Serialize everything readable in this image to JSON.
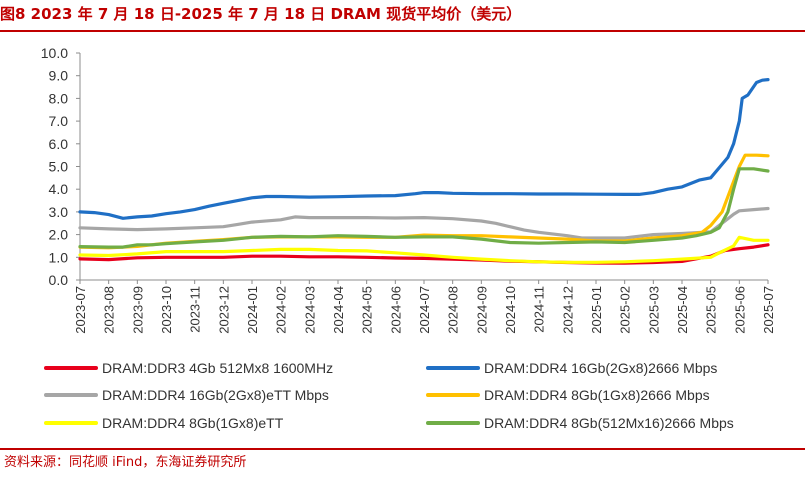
{
  "title": "图8  2023 年 7 月 18 日-2025 年 7 月 18 日 DRAM 现货平均价（美元）",
  "source": "资料来源：同花顺 iFind，东海证券研究所",
  "chart_data": {
    "type": "line",
    "x_categories": [
      "2023-07",
      "2023-08",
      "2023-09",
      "2023-10",
      "2023-11",
      "2023-12",
      "2024-01",
      "2024-02",
      "2024-03",
      "2024-04",
      "2024-05",
      "2024-06",
      "2024-07",
      "2024-08",
      "2024-09",
      "2024-10",
      "2024-11",
      "2024-12",
      "2025-01",
      "2025-02",
      "2025-03",
      "2025-04",
      "2025-05",
      "2025-06",
      "2025-07"
    ],
    "y_ticks": [
      "0.0",
      "1.0",
      "2.0",
      "3.0",
      "4.0",
      "5.0",
      "6.0",
      "7.0",
      "8.0",
      "9.0",
      "10.0"
    ],
    "ylim": [
      0,
      10
    ],
    "grid": false,
    "legend_position": "bottom",
    "series": [
      {
        "name": "DRAM:DDR3 4Gb 512Mx8 1600MHz",
        "color": "#e8001c",
        "points": [
          [
            0,
            0.93
          ],
          [
            1,
            0.9
          ],
          [
            2,
            0.98
          ],
          [
            3,
            1.0
          ],
          [
            4,
            1.0
          ],
          [
            5,
            1.0
          ],
          [
            6,
            1.05
          ],
          [
            7,
            1.05
          ],
          [
            8,
            1.02
          ],
          [
            9,
            1.02
          ],
          [
            10,
            1.0
          ],
          [
            11,
            0.97
          ],
          [
            12,
            0.95
          ],
          [
            13,
            0.92
          ],
          [
            14,
            0.88
          ],
          [
            15,
            0.83
          ],
          [
            16,
            0.8
          ],
          [
            17,
            0.77
          ],
          [
            18,
            0.75
          ],
          [
            19,
            0.74
          ],
          [
            20,
            0.77
          ],
          [
            21,
            0.82
          ],
          [
            22,
            1.05
          ],
          [
            22.5,
            1.3
          ],
          [
            23,
            1.38
          ],
          [
            23.5,
            1.45
          ],
          [
            24,
            1.55
          ]
        ]
      },
      {
        "name": "DRAM:DDR4 16Gb(2Gx8)2666 Mbps",
        "color": "#1f6fc5",
        "points": [
          [
            0,
            3.0
          ],
          [
            0.5,
            2.97
          ],
          [
            1,
            2.88
          ],
          [
            1.5,
            2.72
          ],
          [
            2,
            2.78
          ],
          [
            2.5,
            2.82
          ],
          [
            3,
            2.92
          ],
          [
            3.5,
            3.0
          ],
          [
            4,
            3.1
          ],
          [
            4.5,
            3.25
          ],
          [
            5,
            3.38
          ],
          [
            5.5,
            3.5
          ],
          [
            6,
            3.62
          ],
          [
            6.5,
            3.68
          ],
          [
            7,
            3.68
          ],
          [
            8,
            3.65
          ],
          [
            9,
            3.67
          ],
          [
            10,
            3.7
          ],
          [
            11,
            3.72
          ],
          [
            11.7,
            3.8
          ],
          [
            12,
            3.85
          ],
          [
            12.5,
            3.85
          ],
          [
            13,
            3.82
          ],
          [
            14,
            3.8
          ],
          [
            15,
            3.8
          ],
          [
            16,
            3.79
          ],
          [
            17,
            3.79
          ],
          [
            18,
            3.78
          ],
          [
            19,
            3.77
          ],
          [
            19.5,
            3.77
          ],
          [
            20,
            3.85
          ],
          [
            20.5,
            4.0
          ],
          [
            21,
            4.1
          ],
          [
            21.3,
            4.25
          ],
          [
            21.6,
            4.4
          ],
          [
            22,
            4.5
          ],
          [
            22.3,
            4.95
          ],
          [
            22.6,
            5.4
          ],
          [
            22.8,
            6.0
          ],
          [
            23,
            7.0
          ],
          [
            23.1,
            8.0
          ],
          [
            23.3,
            8.15
          ],
          [
            23.6,
            8.7
          ],
          [
            23.8,
            8.8
          ],
          [
            24,
            8.83
          ]
        ]
      },
      {
        "name": "DRAM:DDR4 16Gb(2Gx8)eTT Mbps",
        "color": "#a6a6a6",
        "points": [
          [
            0,
            2.3
          ],
          [
            1,
            2.25
          ],
          [
            2,
            2.22
          ],
          [
            3,
            2.25
          ],
          [
            4,
            2.3
          ],
          [
            5,
            2.35
          ],
          [
            5.5,
            2.45
          ],
          [
            6,
            2.55
          ],
          [
            7,
            2.65
          ],
          [
            7.5,
            2.78
          ],
          [
            8,
            2.75
          ],
          [
            9,
            2.75
          ],
          [
            10,
            2.75
          ],
          [
            11,
            2.73
          ],
          [
            12,
            2.75
          ],
          [
            13,
            2.7
          ],
          [
            14,
            2.6
          ],
          [
            14.5,
            2.5
          ],
          [
            15,
            2.35
          ],
          [
            15.5,
            2.2
          ],
          [
            16,
            2.1
          ],
          [
            17,
            1.95
          ],
          [
            17.5,
            1.85
          ],
          [
            18,
            1.85
          ],
          [
            19,
            1.85
          ],
          [
            20,
            2.0
          ],
          [
            21,
            2.05
          ],
          [
            22,
            2.12
          ],
          [
            22.5,
            2.6
          ],
          [
            22.8,
            2.9
          ],
          [
            23,
            3.05
          ],
          [
            23.5,
            3.1
          ],
          [
            24,
            3.15
          ]
        ]
      },
      {
        "name": "DRAM:DDR4 8Gb(1Gx8)2666 Mbps",
        "color": "#ffc000",
        "points": [
          [
            0,
            1.45
          ],
          [
            1,
            1.42
          ],
          [
            2,
            1.48
          ],
          [
            3,
            1.62
          ],
          [
            4,
            1.7
          ],
          [
            5,
            1.78
          ],
          [
            6,
            1.88
          ],
          [
            7,
            1.9
          ],
          [
            8,
            1.9
          ],
          [
            9,
            1.9
          ],
          [
            10,
            1.88
          ],
          [
            11,
            1.88
          ],
          [
            12,
            1.98
          ],
          [
            13,
            1.95
          ],
          [
            14,
            1.95
          ],
          [
            15,
            1.9
          ],
          [
            16,
            1.85
          ],
          [
            17,
            1.8
          ],
          [
            18,
            1.72
          ],
          [
            19,
            1.72
          ],
          [
            20,
            1.85
          ],
          [
            21,
            1.95
          ],
          [
            21.7,
            2.1
          ],
          [
            22,
            2.4
          ],
          [
            22.4,
            3.0
          ],
          [
            22.7,
            4.0
          ],
          [
            23,
            5.0
          ],
          [
            23.2,
            5.5
          ],
          [
            23.6,
            5.5
          ],
          [
            24,
            5.47
          ]
        ]
      },
      {
        "name": "DRAM:DDR4 8Gb(1Gx8)eTT",
        "color": "#ffff00",
        "points": [
          [
            0,
            1.1
          ],
          [
            1,
            1.08
          ],
          [
            2,
            1.15
          ],
          [
            3,
            1.25
          ],
          [
            4,
            1.25
          ],
          [
            5,
            1.25
          ],
          [
            6,
            1.3
          ],
          [
            7,
            1.35
          ],
          [
            8,
            1.35
          ],
          [
            9,
            1.3
          ],
          [
            10,
            1.28
          ],
          [
            11,
            1.2
          ],
          [
            12,
            1.1
          ],
          [
            13,
            1.0
          ],
          [
            14,
            0.92
          ],
          [
            15,
            0.85
          ],
          [
            16,
            0.8
          ],
          [
            17,
            0.78
          ],
          [
            18,
            0.78
          ],
          [
            19,
            0.8
          ],
          [
            20,
            0.85
          ],
          [
            21,
            0.92
          ],
          [
            22,
            1.0
          ],
          [
            22.3,
            1.2
          ],
          [
            22.8,
            1.5
          ],
          [
            23,
            1.88
          ],
          [
            23.5,
            1.75
          ],
          [
            24,
            1.75
          ]
        ]
      },
      {
        "name": "DRAM:DDR4 8Gb(512Mx16)2666 Mbps",
        "color": "#70ad47",
        "points": [
          [
            0,
            1.47
          ],
          [
            1,
            1.45
          ],
          [
            1.5,
            1.45
          ],
          [
            2,
            1.55
          ],
          [
            2.5,
            1.55
          ],
          [
            3,
            1.6
          ],
          [
            4,
            1.68
          ],
          [
            5,
            1.75
          ],
          [
            6,
            1.88
          ],
          [
            7,
            1.92
          ],
          [
            8,
            1.9
          ],
          [
            9,
            1.95
          ],
          [
            10,
            1.92
          ],
          [
            11,
            1.88
          ],
          [
            12,
            1.9
          ],
          [
            13,
            1.9
          ],
          [
            14,
            1.8
          ],
          [
            15,
            1.65
          ],
          [
            16,
            1.62
          ],
          [
            17,
            1.65
          ],
          [
            18,
            1.68
          ],
          [
            19,
            1.65
          ],
          [
            20,
            1.75
          ],
          [
            21,
            1.85
          ],
          [
            21.5,
            1.95
          ],
          [
            22,
            2.1
          ],
          [
            22.3,
            2.3
          ],
          [
            22.6,
            3.0
          ],
          [
            22.8,
            4.0
          ],
          [
            23,
            4.9
          ],
          [
            23.5,
            4.9
          ],
          [
            24,
            4.8
          ]
        ]
      }
    ]
  }
}
